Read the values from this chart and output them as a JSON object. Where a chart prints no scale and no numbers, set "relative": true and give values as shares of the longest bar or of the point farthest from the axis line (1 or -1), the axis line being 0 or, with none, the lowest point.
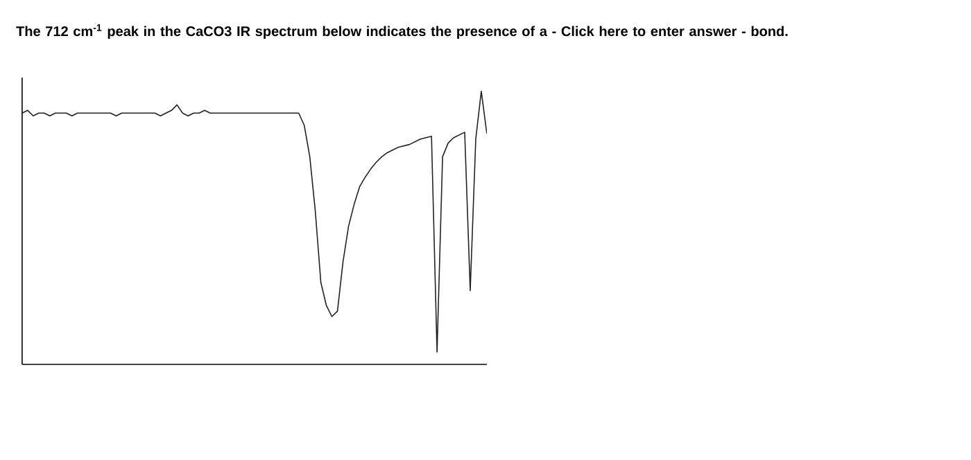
{
  "chart_data": {
    "type": "line",
    "relative": true,
    "title": "The 712 cm$^{-1}$ peak in the CaCO3 IR spectrum below indicates the presence of a - Click here to enter answer - bond.",
    "categories": [
      null,
      null,
      null,
      null,
      null,
      null,
      null,
      null,
      null,
      null,
      null,
      null,
      null,
      null,
      null,
      null,
      null,
      null,
      null,
      null,
      null,
      null,
      null,
      null,
      null,
      null,
      null,
      null,
      null,
      null,
      null,
      null,
      null,
      null,
      null,
      null,
      null,
      null,
      null,
      null,
      null,
      null,
      null,
      null,
      null,
      null,
      null,
      null,
      null,
      null,
      null,
      null,
      null,
      null,
      null,
      null,
      null,
      null,
      null,
      null,
      null,
      null,
      null,
      null,
      null,
      null,
      null,
      null,
      null,
      null,
      null,
      null,
      null,
      null,
      null,
      null,
      null,
      null,
      null,
      null,
      null,
      null,
      null,
      null,
      null
    ],
    "series": [
      {
        "color": "#222222",
        "values": [
          0.92,
          0.93,
          0.91,
          0.92,
          0.92,
          0.91,
          0.92,
          0.92,
          0.92,
          0.91,
          0.92,
          0.92,
          0.92,
          0.92,
          0.92,
          0.92,
          0.92,
          0.91,
          0.92,
          0.92,
          0.92,
          0.92,
          0.92,
          0.92,
          0.92,
          0.91,
          0.92,
          0.93,
          0.95,
          0.92,
          0.91,
          0.92,
          0.92,
          0.93,
          0.92,
          0.92,
          0.92,
          0.92,
          0.92,
          0.92,
          0.92,
          0.92,
          0.92,
          0.92,
          0.92,
          0.92,
          0.92,
          0.92,
          0.92,
          0.92,
          0.92,
          0.875,
          0.76,
          0.56,
          0.3,
          0.215,
          0.175,
          0.195,
          0.375,
          0.505,
          0.585,
          0.65,
          0.685,
          0.715,
          0.74,
          0.76,
          0.775,
          0.785,
          0.795,
          0.8,
          0.805,
          0.815,
          0.825,
          0.83,
          0.835,
          0.045,
          0.76,
          0.81,
          0.83,
          0.84,
          0.85,
          0.27,
          0.825,
          1.0,
          0.845
        ]
      }
    ]
  }
}
